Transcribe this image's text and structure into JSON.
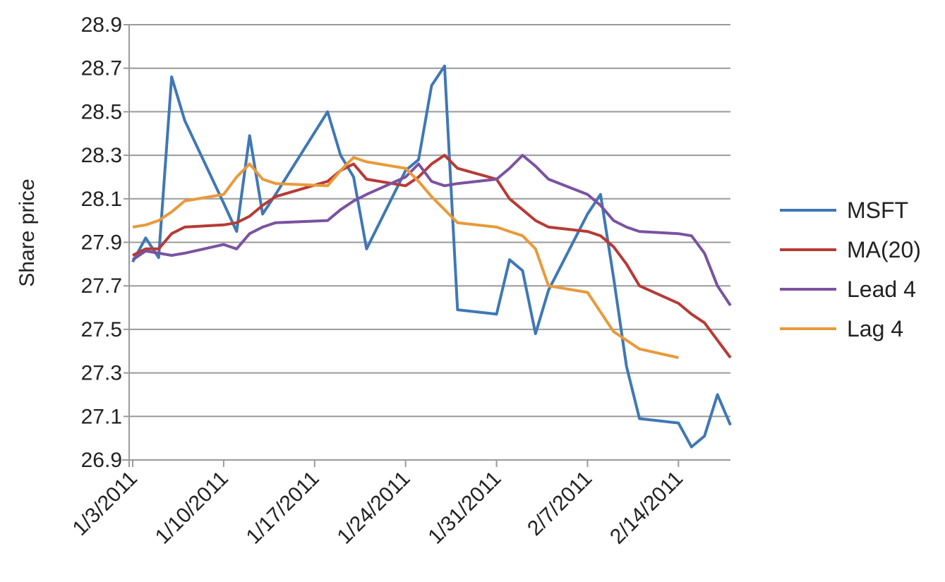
{
  "chart_data": {
    "type": "line",
    "ylabel": "Share price",
    "xlabel": "",
    "title": "",
    "ylim": [
      26.9,
      28.9
    ],
    "yticks": [
      "28.9",
      "28.7",
      "28.5",
      "28.3",
      "28.1",
      "27.9",
      "27.7",
      "27.5",
      "27.3",
      "27.1",
      "26.9"
    ],
    "x_tick_labels": [
      "1/3/2011",
      "1/10/2011",
      "1/17/2011",
      "1/24/2011",
      "1/31/2011",
      "2/7/2011",
      "2/14/2011"
    ],
    "x_tick_days": [
      0,
      7,
      14,
      21,
      28,
      35,
      42
    ],
    "grid": true,
    "legend_position": "right",
    "series": [
      {
        "name": "MSFT",
        "color": "#3f78b4",
        "x": [
          "2011-01-03",
          "2011-01-04",
          "2011-01-05",
          "2011-01-06",
          "2011-01-07",
          "2011-01-10",
          "2011-01-11",
          "2011-01-12",
          "2011-01-13",
          "2011-01-14",
          "2011-01-18",
          "2011-01-19",
          "2011-01-20",
          "2011-01-21",
          "2011-01-24",
          "2011-01-25",
          "2011-01-26",
          "2011-01-27",
          "2011-01-28",
          "2011-01-31",
          "2011-02-01",
          "2011-02-02",
          "2011-02-03",
          "2011-02-04",
          "2011-02-07",
          "2011-02-08",
          "2011-02-09",
          "2011-02-10",
          "2011-02-11",
          "2011-02-14",
          "2011-02-15",
          "2011-02-16",
          "2011-02-17",
          "2011-02-18"
        ],
        "values": [
          27.81,
          27.92,
          27.83,
          28.66,
          28.46,
          28.08,
          27.95,
          28.39,
          28.03,
          28.12,
          28.5,
          28.3,
          28.2,
          27.87,
          28.23,
          28.28,
          28.62,
          28.71,
          27.59,
          27.57,
          27.82,
          27.77,
          27.48,
          27.68,
          28.03,
          28.12,
          27.74,
          27.33,
          27.09,
          27.07,
          26.96,
          27.01,
          27.2,
          27.06
        ]
      },
      {
        "name": "MA(20)",
        "color": "#b73a35",
        "x": [
          "2011-01-03",
          "2011-01-04",
          "2011-01-05",
          "2011-01-06",
          "2011-01-07",
          "2011-01-10",
          "2011-01-11",
          "2011-01-12",
          "2011-01-13",
          "2011-01-14",
          "2011-01-18",
          "2011-01-19",
          "2011-01-20",
          "2011-01-21",
          "2011-01-24",
          "2011-01-25",
          "2011-01-26",
          "2011-01-27",
          "2011-01-28",
          "2011-01-31",
          "2011-02-01",
          "2011-02-02",
          "2011-02-03",
          "2011-02-04",
          "2011-02-07",
          "2011-02-08",
          "2011-02-09",
          "2011-02-10",
          "2011-02-11",
          "2011-02-14",
          "2011-02-15",
          "2011-02-16",
          "2011-02-17",
          "2011-02-18"
        ],
        "values": [
          27.84,
          27.87,
          27.87,
          27.94,
          27.97,
          27.98,
          27.99,
          28.02,
          28.07,
          28.11,
          28.18,
          28.23,
          28.26,
          28.19,
          28.16,
          28.2,
          28.26,
          28.3,
          28.24,
          28.19,
          28.1,
          28.05,
          28.0,
          27.97,
          27.95,
          27.93,
          27.88,
          27.8,
          27.7,
          27.62,
          27.57,
          27.53,
          27.45,
          27.37
        ]
      },
      {
        "name": "Lead 4",
        "color": "#7b52a0",
        "x": [
          "2011-01-03",
          "2011-01-04",
          "2011-01-05",
          "2011-01-06",
          "2011-01-07",
          "2011-01-10",
          "2011-01-11",
          "2011-01-12",
          "2011-01-13",
          "2011-01-14",
          "2011-01-18",
          "2011-01-19",
          "2011-01-20",
          "2011-01-21",
          "2011-01-24",
          "2011-01-25",
          "2011-01-26",
          "2011-01-27",
          "2011-01-28",
          "2011-01-31",
          "2011-02-01",
          "2011-02-02",
          "2011-02-03",
          "2011-02-04",
          "2011-02-07",
          "2011-02-08",
          "2011-02-09",
          "2011-02-10",
          "2011-02-11",
          "2011-02-14",
          "2011-02-15",
          "2011-02-16",
          "2011-02-17",
          "2011-02-18"
        ],
        "values": [
          27.82,
          27.86,
          27.85,
          27.84,
          27.85,
          27.89,
          27.87,
          27.94,
          27.97,
          27.99,
          28.0,
          28.05,
          28.09,
          28.12,
          28.2,
          28.26,
          28.18,
          28.16,
          28.17,
          28.19,
          28.24,
          28.3,
          28.25,
          28.19,
          28.12,
          28.07,
          28.0,
          27.97,
          27.95,
          27.94,
          27.93,
          27.85,
          27.7,
          27.61
        ]
      },
      {
        "name": "Lag 4",
        "color": "#e89a3a",
        "x": [
          "2011-01-03",
          "2011-01-04",
          "2011-01-05",
          "2011-01-06",
          "2011-01-07",
          "2011-01-10",
          "2011-01-11",
          "2011-01-12",
          "2011-01-13",
          "2011-01-14",
          "2011-01-18",
          "2011-01-19",
          "2011-01-20",
          "2011-01-21",
          "2011-01-24",
          "2011-01-25",
          "2011-01-26",
          "2011-01-27",
          "2011-01-28",
          "2011-01-31",
          "2011-02-01",
          "2011-02-02",
          "2011-02-03",
          "2011-02-04",
          "2011-02-07",
          "2011-02-08",
          "2011-02-09",
          "2011-02-10",
          "2011-02-11",
          "2011-02-14"
        ],
        "values": [
          27.97,
          27.98,
          28.0,
          28.04,
          28.09,
          28.12,
          28.2,
          28.26,
          28.19,
          28.17,
          28.16,
          28.23,
          28.29,
          28.27,
          28.24,
          28.18,
          28.11,
          28.05,
          27.99,
          27.97,
          27.95,
          27.93,
          27.87,
          27.7,
          27.67,
          27.58,
          27.49,
          27.45,
          27.41,
          27.37
        ]
      }
    ]
  }
}
